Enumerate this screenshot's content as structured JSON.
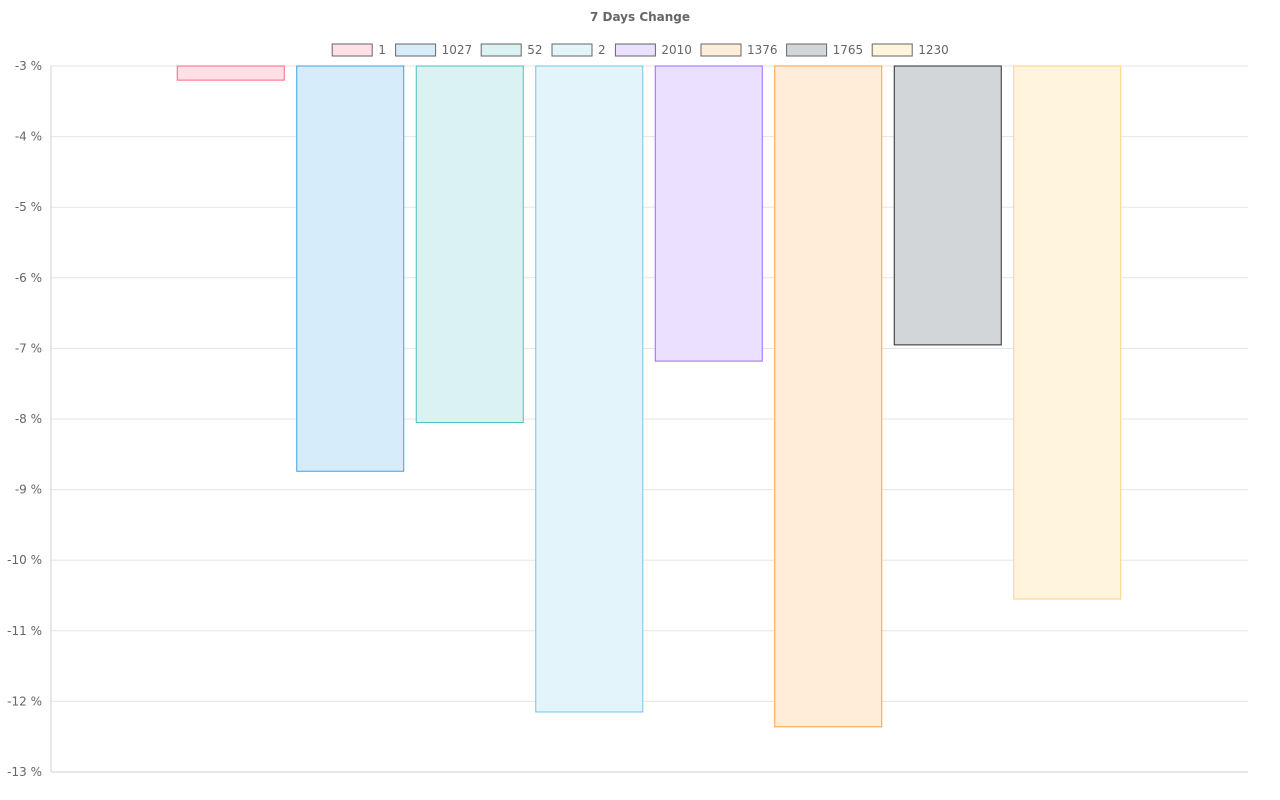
{
  "chart_data": {
    "type": "bar",
    "title": "7 Days Change",
    "xlabel": "",
    "ylabel": "",
    "ylim": [
      -13,
      -3
    ],
    "y_ticks": [
      -3,
      -4,
      -5,
      -6,
      -7,
      -8,
      -9,
      -10,
      -11,
      -12,
      -13
    ],
    "y_tick_suffix": " %",
    "grid": true,
    "legend_position": "top",
    "series": [
      {
        "name": "1",
        "value": -3.2,
        "fill": "#ffe0e6",
        "stroke": "#ff6384"
      },
      {
        "name": "1027",
        "value": -8.74,
        "fill": "#d7ecfb",
        "stroke": "#36a2eb"
      },
      {
        "name": "52",
        "value": -8.05,
        "fill": "#dbf2f2",
        "stroke": "#4bc0c0"
      },
      {
        "name": "2",
        "value": -12.15,
        "fill": "#e3f4fa",
        "stroke": "#75c4e3"
      },
      {
        "name": "2010",
        "value": -7.18,
        "fill": "#ebe0ff",
        "stroke": "#9966ff"
      },
      {
        "name": "1376",
        "value": -12.36,
        "fill": "#ffecd9",
        "stroke": "#ff9f40"
      },
      {
        "name": "1765",
        "value": -6.95,
        "fill": "#d3d6d9",
        "stroke": "#2a2d31"
      },
      {
        "name": "1230",
        "value": -10.55,
        "fill": "#fff4dc",
        "stroke": "#ffd27a"
      }
    ]
  }
}
